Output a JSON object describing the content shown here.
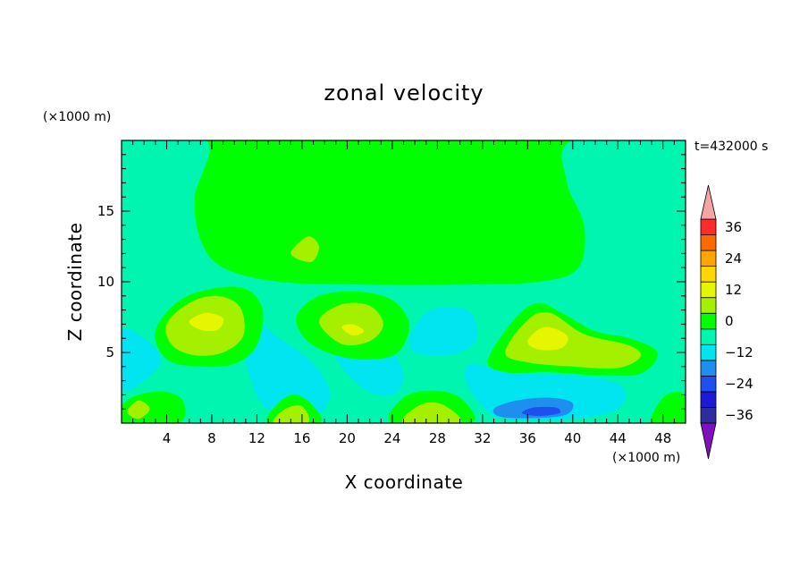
{
  "chart_data": {
    "type": "heatmap",
    "title": "zonal velocity",
    "xlabel": "X coordinate",
    "ylabel": "Z coordinate",
    "x_unit": "(×1000 m)",
    "y_unit": "(×1000 m)",
    "time_annotation": "t=432000 s",
    "xlim": [
      0,
      50
    ],
    "ylim": [
      0,
      20
    ],
    "x_ticks": [
      4,
      8,
      12,
      16,
      20,
      24,
      28,
      32,
      36,
      40,
      44,
      48
    ],
    "x_tick_labels": [
      "4",
      "8",
      "12",
      "16",
      "20",
      "24",
      "28",
      "32",
      "36",
      "40",
      "44",
      "48"
    ],
    "y_ticks": [
      5,
      10,
      15
    ],
    "y_tick_labels": [
      "5",
      "10",
      "15"
    ],
    "colorbar": {
      "levels": [
        -42,
        -36,
        -30,
        -24,
        -18,
        -12,
        -6,
        0,
        6,
        12,
        18,
        24,
        30,
        36,
        42
      ],
      "tick_values": [
        36,
        24,
        12,
        0,
        -12,
        -24,
        -36
      ],
      "tick_labels": [
        "36",
        "24",
        "12",
        "0",
        "−12",
        "−24",
        "−36"
      ],
      "colors": [
        "#7f0fbf",
        "#2d2d9f",
        "#1a1ad8",
        "#1f4fef",
        "#1f8fef",
        "#00e5f0",
        "#00f5b0",
        "#00ff00",
        "#a5f000",
        "#e6f500",
        "#ffd700",
        "#ffa500",
        "#ff6a00",
        "#ff2a2a",
        "#f4a6a6"
      ],
      "extend": "both"
    },
    "field": {
      "background": "#00ff00",
      "regions": [
        {
          "level": -6,
          "points": [
            [
              0,
              0
            ],
            [
              50,
              0
            ],
            [
              50,
              20
            ],
            [
              40,
              20
            ],
            [
              39.5,
              17
            ],
            [
              41,
              14
            ],
            [
              40.5,
              11
            ],
            [
              37,
              10
            ],
            [
              30,
              9.8
            ],
            [
              22,
              9.8
            ],
            [
              14,
              10
            ],
            [
              9,
              11
            ],
            [
              7,
              13
            ],
            [
              6.5,
              16
            ],
            [
              7.5,
              20
            ],
            [
              0,
              20
            ]
          ]
        },
        {
          "level": -6,
          "points": [
            [
              47,
              20
            ],
            [
              50,
              20
            ],
            [
              50,
              10
            ],
            [
              48.5,
              11
            ],
            [
              47.5,
              14
            ],
            [
              47,
              17
            ]
          ]
        },
        {
          "level": -12,
          "points": [
            [
              0,
              2.5
            ],
            [
              2,
              3
            ],
            [
              3.5,
              4.5
            ],
            [
              2,
              6
            ],
            [
              0,
              6.5
            ]
          ]
        },
        {
          "level": -12,
          "points": [
            [
              12,
              7
            ],
            [
              14,
              6
            ],
            [
              17,
              4.2
            ],
            [
              18.5,
              2
            ],
            [
              17,
              0.5
            ],
            [
              13,
              1
            ],
            [
              11.5,
              3
            ],
            [
              11,
              5
            ]
          ]
        },
        {
          "level": -12,
          "points": [
            [
              19,
              7.5
            ],
            [
              21,
              6.5
            ],
            [
              24,
              5
            ],
            [
              25,
              3.2
            ],
            [
              24,
              2
            ],
            [
              22,
              2.2
            ],
            [
              20,
              3.5
            ],
            [
              18.5,
              5.5
            ]
          ]
        },
        {
          "level": -12,
          "points": [
            [
              25.5,
              6
            ],
            [
              27,
              7.8
            ],
            [
              29,
              8.2
            ],
            [
              31,
              7.8
            ],
            [
              31.5,
              6
            ],
            [
              30,
              5
            ],
            [
              28,
              4.8
            ],
            [
              26,
              5
            ]
          ]
        },
        {
          "level": -12,
          "points": [
            [
              30.5,
              3
            ],
            [
              31,
              4.2
            ],
            [
              34,
              3.6
            ],
            [
              38,
              3.4
            ],
            [
              42,
              3.2
            ],
            [
              44.5,
              2.5
            ],
            [
              44,
              1
            ],
            [
              40,
              0.3
            ],
            [
              34,
              0.3
            ],
            [
              32,
              1.2
            ]
          ]
        },
        {
          "level": -18,
          "points": [
            [
              33,
              1
            ],
            [
              35,
              1.6
            ],
            [
              38,
              1.8
            ],
            [
              40,
              1.4
            ],
            [
              39,
              0.5
            ],
            [
              34,
              0.4
            ]
          ]
        },
        {
          "level": -24,
          "points": [
            [
              35.5,
              0.7
            ],
            [
              36.5,
              1.1
            ],
            [
              38.5,
              1.1
            ],
            [
              38.8,
              0.7
            ],
            [
              37,
              0.5
            ]
          ]
        },
        {
          "level": 0,
          "points": [
            [
              0,
              0
            ],
            [
              5,
              0
            ],
            [
              5.5,
              1.5
            ],
            [
              4,
              2.2
            ],
            [
              1.5,
              2
            ],
            [
              0,
              1.2
            ]
          ]
        },
        {
          "level": 6,
          "points": [
            [
              0.5,
              0.8
            ],
            [
              1.5,
              1.6
            ],
            [
              2.5,
              1
            ],
            [
              1.5,
              0.3
            ]
          ]
        },
        {
          "level": 0,
          "points": [
            [
              3,
              6.5
            ],
            [
              5,
              8.6
            ],
            [
              8,
              9.5
            ],
            [
              11,
              9.5
            ],
            [
              12.5,
              8
            ],
            [
              12,
              5.5
            ],
            [
              10,
              4.2
            ],
            [
              7,
              4
            ],
            [
              4,
              4.5
            ]
          ]
        },
        {
          "level": 6,
          "points": [
            [
              4,
              7
            ],
            [
              6,
              8.5
            ],
            [
              8.5,
              9
            ],
            [
              10.5,
              8.2
            ],
            [
              10.8,
              6.2
            ],
            [
              9,
              5
            ],
            [
              6.5,
              4.8
            ],
            [
              4.5,
              5.5
            ]
          ]
        },
        {
          "level": 12,
          "points": [
            [
              6,
              7.2
            ],
            [
              7.5,
              7.8
            ],
            [
              9,
              7.4
            ],
            [
              8.5,
              6.6
            ],
            [
              7,
              6.6
            ]
          ]
        },
        {
          "level": 0,
          "points": [
            [
              15.5,
              7.5
            ],
            [
              17.5,
              9
            ],
            [
              21,
              9.3
            ],
            [
              24,
              8.7
            ],
            [
              25.5,
              7
            ],
            [
              24.5,
              5
            ],
            [
              22,
              4.5
            ],
            [
              19,
              4.8
            ],
            [
              16.5,
              5.8
            ]
          ]
        },
        {
          "level": 6,
          "points": [
            [
              17.5,
              7.2
            ],
            [
              19.5,
              8.4
            ],
            [
              22,
              8.3
            ],
            [
              23.2,
              7
            ],
            [
              22,
              5.8
            ],
            [
              19.5,
              5.6
            ]
          ]
        },
        {
          "level": 12,
          "points": [
            [
              19.5,
              6.8
            ],
            [
              20.5,
              7
            ],
            [
              21.5,
              6.5
            ],
            [
              20.5,
              6.2
            ]
          ]
        },
        {
          "level": 0,
          "points": [
            [
              13,
              0
            ],
            [
              14,
              1.5
            ],
            [
              15.5,
              2
            ],
            [
              17,
              1.2
            ],
            [
              17.5,
              0
            ]
          ]
        },
        {
          "level": 6,
          "points": [
            [
              13.5,
              0
            ],
            [
              14.5,
              1
            ],
            [
              16,
              1.2
            ],
            [
              16.5,
              0
            ]
          ]
        },
        {
          "level": 0,
          "points": [
            [
              24,
              0
            ],
            [
              25,
              1.8
            ],
            [
              27.5,
              2.3
            ],
            [
              30,
              1.8
            ],
            [
              31,
              0
            ]
          ]
        },
        {
          "level": 6,
          "points": [
            [
              25,
              0
            ],
            [
              26.5,
              1.3
            ],
            [
              28.5,
              1.3
            ],
            [
              30,
              0
            ]
          ]
        },
        {
          "level": 0,
          "points": [
            [
              32.5,
              4.5
            ],
            [
              35,
              7.5
            ],
            [
              37,
              8.5
            ],
            [
              39,
              7.8
            ],
            [
              42,
              6.5
            ],
            [
              45,
              6
            ],
            [
              47.5,
              5
            ],
            [
              46,
              3.5
            ],
            [
              42,
              3.4
            ],
            [
              38,
              3.6
            ],
            [
              34,
              3.6
            ]
          ]
        },
        {
          "level": 6,
          "points": [
            [
              34,
              5
            ],
            [
              36,
              7.3
            ],
            [
              38,
              7.8
            ],
            [
              41,
              6.3
            ],
            [
              45,
              5.5
            ],
            [
              46,
              4.7
            ],
            [
              44,
              3.9
            ],
            [
              40,
              4
            ],
            [
              36,
              4.3
            ]
          ]
        },
        {
          "level": 12,
          "points": [
            [
              36,
              5.8
            ],
            [
              37.5,
              6.8
            ],
            [
              39.5,
              6.2
            ],
            [
              39,
              5.3
            ],
            [
              37,
              5.2
            ]
          ]
        },
        {
          "level": 0,
          "points": [
            [
              47,
              0
            ],
            [
              48,
              1.8
            ],
            [
              49.5,
              2.2
            ],
            [
              50,
              1.5
            ],
            [
              50,
              0
            ]
          ]
        },
        {
          "level": 6,
          "points": [
            [
              15,
              12
            ],
            [
              16.5,
              13.2
            ],
            [
              17.5,
              12.5
            ],
            [
              16.8,
              11.4
            ]
          ]
        }
      ]
    }
  }
}
